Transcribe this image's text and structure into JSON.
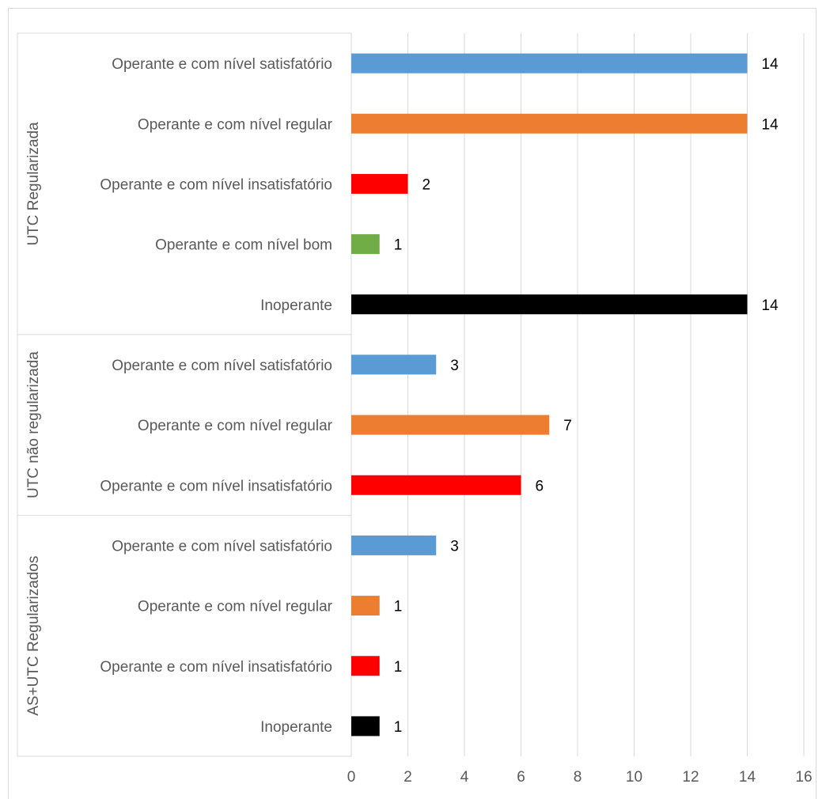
{
  "chart_data": {
    "type": "bar",
    "orientation": "horizontal",
    "xlim": [
      0,
      16
    ],
    "x_ticks": [
      "0",
      "2",
      "4",
      "6",
      "8",
      "10",
      "12",
      "14",
      "16"
    ],
    "grid": true,
    "legend": "none",
    "groups": [
      {
        "name": "UTC Regularizada",
        "bars": [
          {
            "category": "Operante e com nível satisfatório",
            "value": 14,
            "label": "14",
            "color": "#5b9bd5"
          },
          {
            "category": "Operante e com nível regular",
            "value": 14,
            "label": "14",
            "color": "#ed7d31"
          },
          {
            "category": "Operante e com nível insatisfatório",
            "value": 2,
            "label": "2",
            "color": "#ff0000"
          },
          {
            "category": "Operante e com nível bom",
            "value": 1,
            "label": "1",
            "color": "#70ad47"
          },
          {
            "category": "Inoperante",
            "value": 14,
            "label": "14",
            "color": "#000000"
          }
        ]
      },
      {
        "name": "UTC não regularizada",
        "bars": [
          {
            "category": "Operante e com nível satisfatório",
            "value": 3,
            "label": "3",
            "color": "#5b9bd5"
          },
          {
            "category": "Operante e com nível regular",
            "value": 7,
            "label": "7",
            "color": "#ed7d31"
          },
          {
            "category": "Operante e com nível insatisfatório",
            "value": 6,
            "label": "6",
            "color": "#ff0000"
          }
        ]
      },
      {
        "name": "AS+UTC Regularizados",
        "bars": [
          {
            "category": "Operante e com nível satisfatório",
            "value": 3,
            "label": "3",
            "color": "#5b9bd5"
          },
          {
            "category": "Operante e com nível regular",
            "value": 1,
            "label": "1",
            "color": "#ed7d31"
          },
          {
            "category": "Operante e com nível insatisfatório",
            "value": 1,
            "label": "1",
            "color": "#ff0000"
          },
          {
            "category": "Inoperante",
            "value": 1,
            "label": "1",
            "color": "#000000"
          }
        ]
      }
    ]
  }
}
